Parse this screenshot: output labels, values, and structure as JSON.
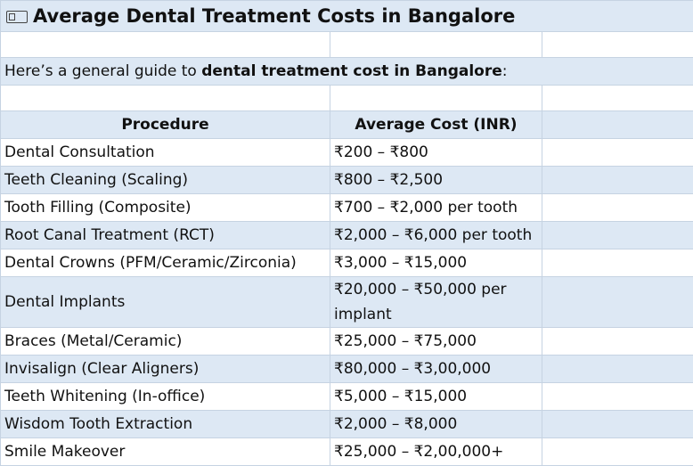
{
  "title": "Average Dental Treatment Costs in Bangalore",
  "title_icon": "receipt-icon",
  "intro": {
    "prefix": "Here’s a general guide to ",
    "bold": "dental treatment cost in Bangalore",
    "suffix": ":"
  },
  "table": {
    "headers": [
      "Procedure",
      "Average Cost (INR)"
    ],
    "rows": [
      {
        "procedure": "Dental Consultation",
        "cost": "₹200 – ₹800"
      },
      {
        "procedure": "Teeth Cleaning (Scaling)",
        "cost": "₹800 – ₹2,500"
      },
      {
        "procedure": "Tooth Filling (Composite)",
        "cost": "₹700 – ₹2,000 per tooth"
      },
      {
        "procedure": "Root Canal Treatment (RCT)",
        "cost": "₹2,000 – ₹6,000 per tooth"
      },
      {
        "procedure": "Dental Crowns (PFM/Ceramic/Zirconia)",
        "cost": "₹3,000 – ₹15,000"
      },
      {
        "procedure": "Dental Implants",
        "cost": "₹20,000 – ₹50,000 per implant"
      },
      {
        "procedure": "Braces (Metal/Ceramic)",
        "cost": "₹25,000 – ₹75,000"
      },
      {
        "procedure": "Invisalign (Clear Aligners)",
        "cost": "₹80,000 – ₹3,00,000"
      },
      {
        "procedure": "Teeth Whitening (In-office)",
        "cost": "₹5,000 – ₹15,000"
      },
      {
        "procedure": "Wisdom Tooth Extraction",
        "cost": "₹2,000 – ₹8,000"
      },
      {
        "procedure": "Smile Makeover",
        "cost": "₹25,000 – ₹2,00,000+"
      }
    ]
  },
  "colors": {
    "row_shade": "#dde8f4",
    "grid_line": "#c6d3e2"
  }
}
